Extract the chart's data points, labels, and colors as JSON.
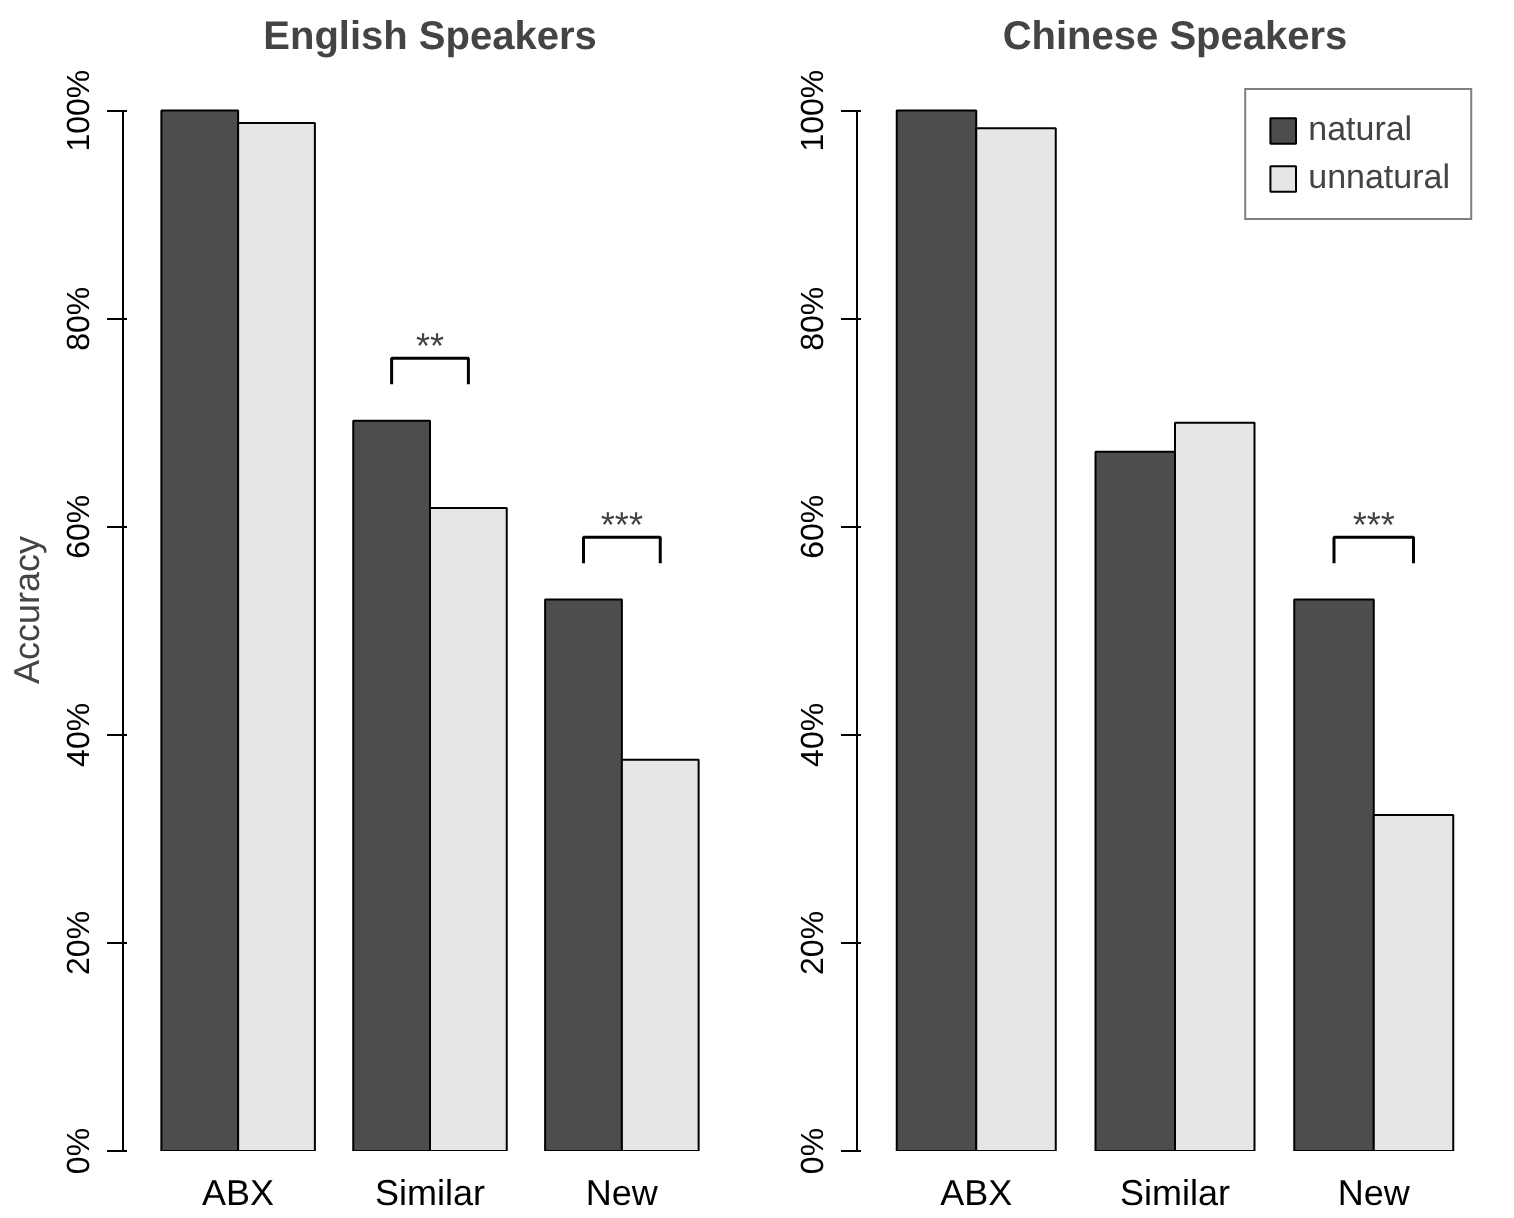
{
  "chart_data": [
    {
      "type": "bar",
      "title": "English Speakers",
      "ylabel": "Accuracy",
      "categories": [
        "ABX",
        "Similar",
        "New"
      ],
      "series": [
        {
          "color": "#4d4d4d",
          "values": [
            100,
            70.2,
            53
          ]
        },
        {
          "color": "#e6e6e6",
          "values": [
            98.8,
            61.8,
            37.6
          ]
        }
      ],
      "ylim": [
        0,
        100
      ],
      "yticks": [
        {
          "value": 0,
          "label": "0%"
        },
        {
          "value": 20,
          "label": "20%"
        },
        {
          "value": 40,
          "label": "40%"
        },
        {
          "value": 60,
          "label": "60%"
        },
        {
          "value": 80,
          "label": "80%"
        },
        {
          "value": 100,
          "label": "100%"
        }
      ],
      "annotations": [
        {
          "text": "**",
          "x": "Similar",
          "y": 70.2
        },
        {
          "text": "***",
          "x": "New",
          "y": 53
        }
      ],
      "grid": false,
      "legend": false
    },
    {
      "type": "bar",
      "title": "Chinese Speakers",
      "categories": [
        "ABX",
        "Similar",
        "New"
      ],
      "series": [
        {
          "name": "natural",
          "color": "#4d4d4d",
          "values": [
            100,
            67.2,
            53
          ]
        },
        {
          "name": "unnatural",
          "color": "#e6e6e6",
          "values": [
            98.3,
            70,
            32.3
          ]
        }
      ],
      "ylim": [
        0,
        100
      ],
      "yticks": [
        {
          "value": 0,
          "label": "0%"
        },
        {
          "value": 20,
          "label": "20%"
        },
        {
          "value": 40,
          "label": "40%"
        },
        {
          "value": 60,
          "label": "60%"
        },
        {
          "value": 80,
          "label": "80%"
        },
        {
          "value": 100,
          "label": "100%"
        }
      ],
      "annotations": [
        {
          "text": "***",
          "x": "New",
          "y": 53
        }
      ],
      "grid": false,
      "legend": "top right"
    }
  ]
}
